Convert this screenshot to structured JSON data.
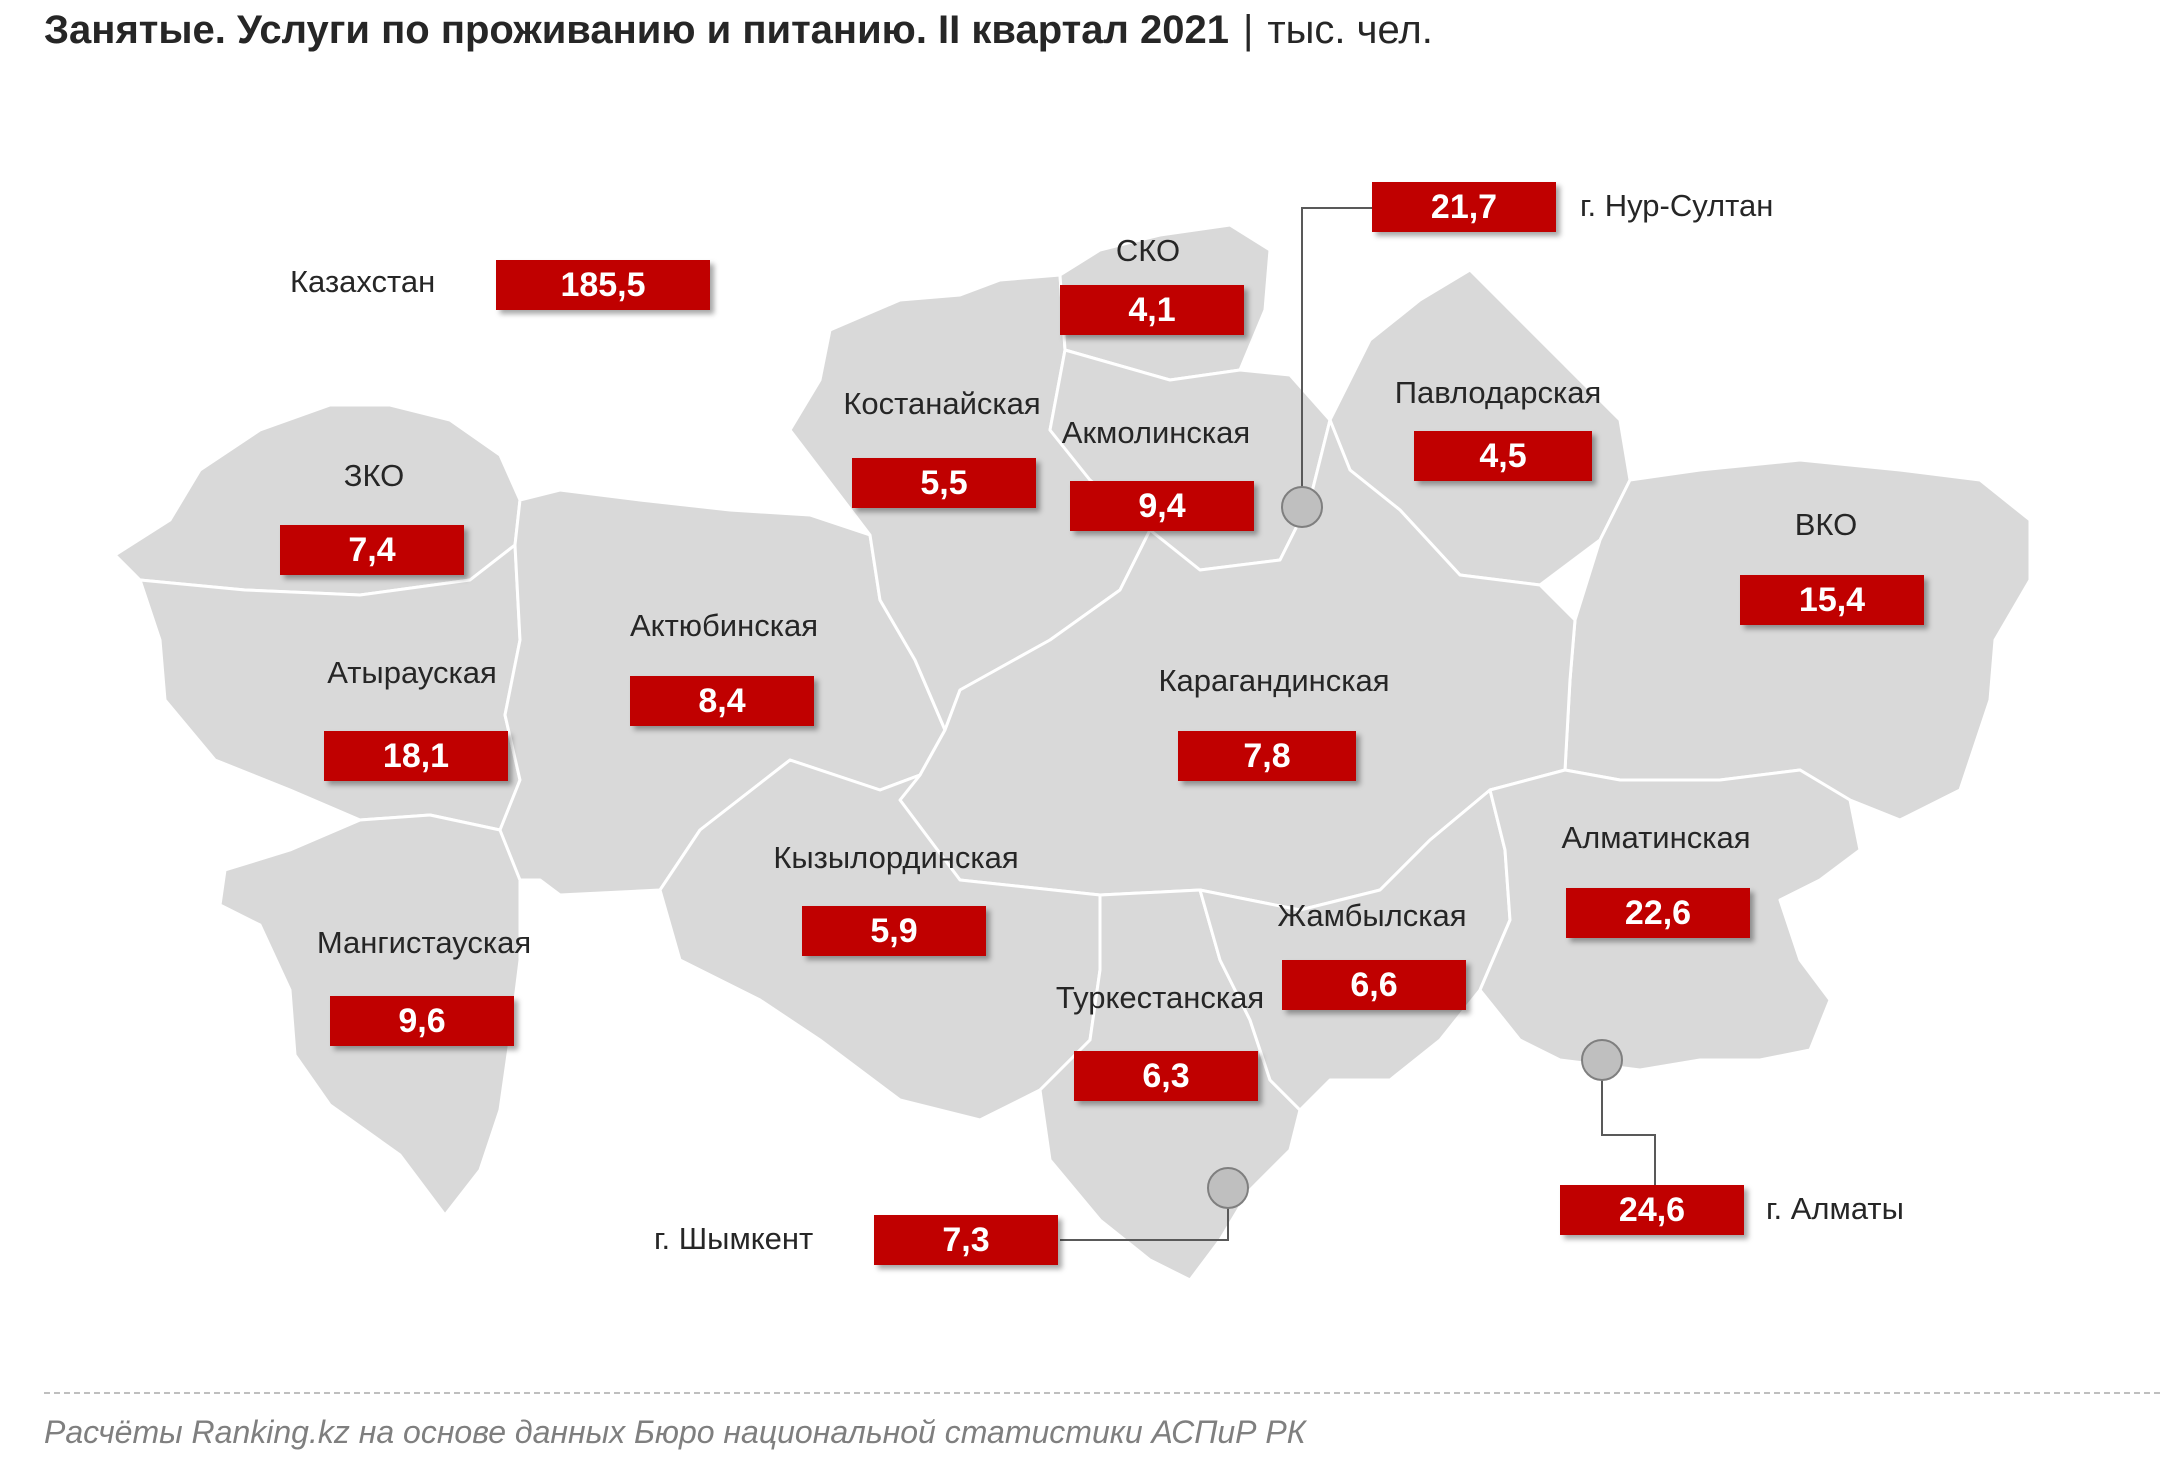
{
  "title": {
    "main": "Занятые. Услуги по проживанию и питанию. II квартал 2021",
    "separator": "|",
    "unit": "тыс. чел."
  },
  "total": {
    "label": "Казахстан",
    "value": "185,5"
  },
  "regions": {
    "zko": {
      "label": "ЗКО",
      "value": "7,4"
    },
    "atyrau": {
      "label": "Атырауская",
      "value": "18,1"
    },
    "mangystau": {
      "label": "Мангистауская",
      "value": "9,6"
    },
    "aktobe": {
      "label": "Актюбинская",
      "value": "8,4"
    },
    "kostanay": {
      "label": "Костанайская",
      "value": "5,5"
    },
    "sko": {
      "label": "СКО",
      "value": "4,1"
    },
    "akmola": {
      "label": "Акмолинская",
      "value": "9,4"
    },
    "pavlodar": {
      "label": "Павлодарская",
      "value": "4,5"
    },
    "vko": {
      "label": "ВКО",
      "value": "15,4"
    },
    "karaganda": {
      "label": "Карагандинская",
      "value": "7,8"
    },
    "kyzylorda": {
      "label": "Кызылординская",
      "value": "5,9"
    },
    "turkestan": {
      "label": "Туркестанская",
      "value": "6,3"
    },
    "zhambyl": {
      "label": "Жамбылская",
      "value": "6,6"
    },
    "almaty_region": {
      "label": "Алматинская",
      "value": "22,6"
    }
  },
  "cities": {
    "nur_sultan": {
      "label": "г. Нур-Султан",
      "value": "21,7"
    },
    "almaty": {
      "label": "г. Алматы",
      "value": "24,6"
    },
    "shymkent": {
      "label": "г. Шымкент",
      "value": "7,3"
    }
  },
  "colors": {
    "value_box": "#c00000",
    "land": "#d9d9d9",
    "city_marker": "#bfbfbf"
  },
  "source": "Расчёты Ranking.kz на основе данных Бюро национальной статистики АСПиР РК"
}
